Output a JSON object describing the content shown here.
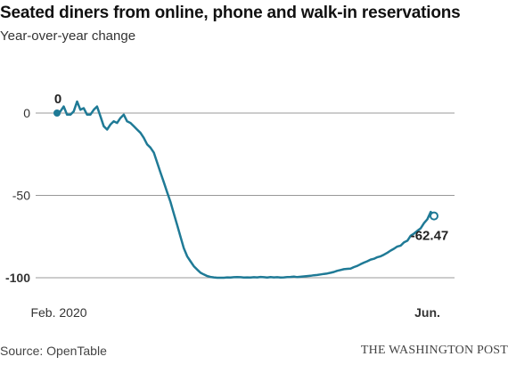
{
  "header": {
    "title": "Seated diners from online, phone and walk-in reservations",
    "subtitle": "Year-over-year change"
  },
  "footer": {
    "source": "Source: OpenTable",
    "credit": "THE WASHINGTON POST"
  },
  "colors": {
    "line": "#1f7a96",
    "grid": "#999999"
  },
  "chart_data": {
    "type": "line",
    "title": "Seated diners from online, phone and walk-in reservations",
    "subtitle": "Year-over-year change",
    "xlabel": "",
    "ylabel": "",
    "ylim": [
      -100,
      0
    ],
    "grid": true,
    "yticks": [
      {
        "value": 0,
        "label": "0"
      },
      {
        "value": -50,
        "label": "-50"
      },
      {
        "value": -100,
        "label": "-100",
        "bold": true
      }
    ],
    "xticks": [
      {
        "day": 0,
        "label": "Feb. 2020"
      },
      {
        "day": 111,
        "label": "Jun.",
        "bold": true
      }
    ],
    "annotations": [
      {
        "day": 0,
        "value": 0,
        "label": "0",
        "marker": "filled"
      },
      {
        "day": 113,
        "value": -62.47,
        "label": "-62.47",
        "marker": "open"
      }
    ],
    "series": [
      {
        "x": [
          0,
          1,
          2,
          3,
          4,
          5,
          6,
          7,
          8,
          9,
          10,
          11,
          12,
          13,
          14,
          15,
          16,
          17,
          18,
          19,
          20,
          21,
          22,
          23,
          24,
          25,
          26,
          27,
          28,
          29,
          30,
          31,
          32,
          33,
          34,
          35,
          36,
          37,
          38,
          39,
          40,
          41,
          42,
          43,
          44,
          45,
          46,
          47,
          48,
          49,
          50,
          51,
          52,
          53,
          54,
          55,
          56,
          57,
          58,
          59,
          60,
          61,
          62,
          63,
          64,
          65,
          66,
          67,
          68,
          69,
          70,
          71,
          72,
          73,
          74,
          75,
          76,
          77,
          78,
          79,
          80,
          81,
          82,
          83,
          84,
          85,
          86,
          87,
          88,
          89,
          90,
          91,
          92,
          93,
          94,
          95,
          96,
          97,
          98,
          99,
          100,
          101,
          102,
          103,
          104,
          105,
          106,
          107,
          108,
          109,
          110,
          111,
          112,
          113
        ],
        "values": [
          0,
          1,
          4,
          -1,
          -1,
          1,
          7,
          2,
          3,
          -1,
          -1,
          2,
          4,
          -2,
          -8,
          -10,
          -7,
          -5,
          -6,
          -3,
          -1,
          -5,
          -6,
          -8,
          -10,
          -12,
          -15,
          -19,
          -21,
          -24,
          -30,
          -36,
          -42,
          -48,
          -54,
          -61,
          -68,
          -75,
          -82,
          -87,
          -90,
          -93,
          -95,
          -97,
          -98,
          -99,
          -99.5,
          -99.8,
          -100,
          -100,
          -100,
          -99.8,
          -99.9,
          -99.7,
          -99.6,
          -99.7,
          -99.9,
          -99.8,
          -99.9,
          -99.7,
          -99.8,
          -99.5,
          -99.7,
          -99.9,
          -99.6,
          -99.8,
          -99.7,
          -99.9,
          -99.8,
          -99.6,
          -99.5,
          -99.3,
          -99.6,
          -99.4,
          -99.2,
          -99,
          -98.8,
          -98.5,
          -98.3,
          -98,
          -97.7,
          -97.4,
          -97,
          -96.5,
          -95.8,
          -95.3,
          -94.8,
          -94.6,
          -94.5,
          -93.5,
          -92.8,
          -91.8,
          -90.8,
          -90,
          -89,
          -88.5,
          -87.5,
          -87,
          -86,
          -84.8,
          -83.5,
          -82.4,
          -81,
          -80.5,
          -78.5,
          -77.5,
          -74.5,
          -73.2,
          -71.5,
          -70,
          -66.8,
          -64.5,
          -60,
          -62.47
        ]
      }
    ]
  }
}
